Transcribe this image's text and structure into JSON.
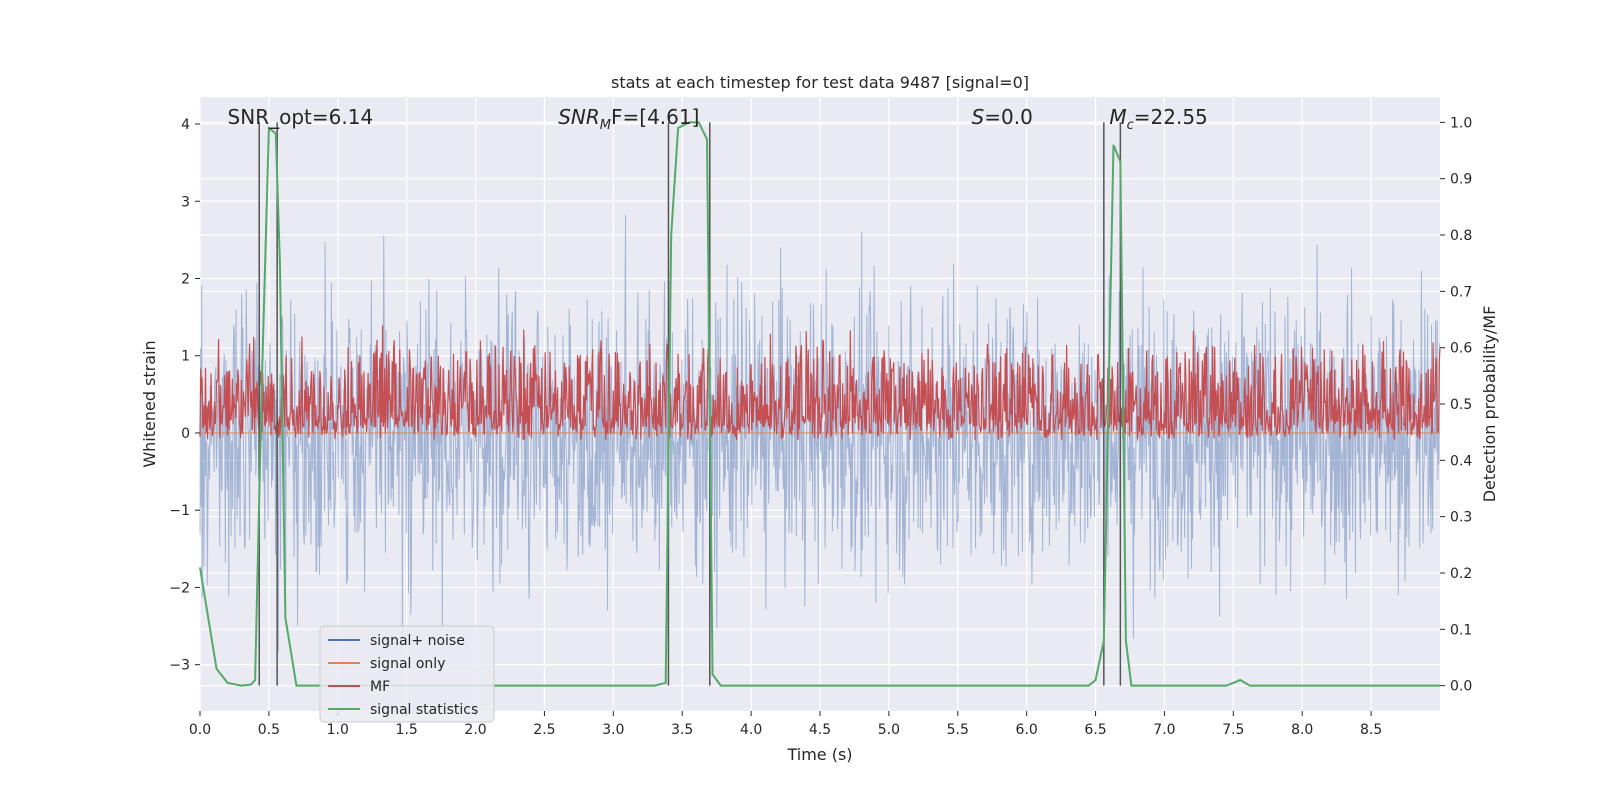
{
  "chart_data": {
    "type": "line",
    "title": "stats at each timestep for test data 9487 [signal=0]",
    "xlabel": "Time (s)",
    "ylabel_left": "Whitened strain",
    "ylabel_right": "Detection probability/MF",
    "xlim": [
      0.0,
      9.0
    ],
    "ylim_left": [
      -3.6,
      4.35
    ],
    "ylim_right": [
      -0.045,
      1.045
    ],
    "x_ticks": [
      0.0,
      0.5,
      1.0,
      1.5,
      2.0,
      2.5,
      3.0,
      3.5,
      4.0,
      4.5,
      5.0,
      5.5,
      6.0,
      6.5,
      7.0,
      7.5,
      8.0,
      8.5
    ],
    "x_tick_labels": [
      "0.0",
      "0.5",
      "1.0",
      "1.5",
      "2.0",
      "2.5",
      "3.0",
      "3.5",
      "4.0",
      "4.5",
      "5.0",
      "5.5",
      "6.0",
      "6.5",
      "7.0",
      "7.5",
      "8.0",
      "8.5"
    ],
    "y_left_ticks": [
      -3,
      -2,
      -1,
      0,
      1,
      2,
      3,
      4
    ],
    "y_left_tick_labels": [
      "−3",
      "−2",
      "−1",
      "0",
      "1",
      "2",
      "3",
      "4"
    ],
    "y_right_ticks": [
      0.0,
      0.1,
      0.2,
      0.3,
      0.4,
      0.5,
      0.6,
      0.7,
      0.8,
      0.9,
      1.0
    ],
    "y_right_tick_labels": [
      "0.0",
      "0.1",
      "0.2",
      "0.3",
      "0.4",
      "0.5",
      "0.6",
      "0.7",
      "0.8",
      "0.9",
      "1.0"
    ],
    "grid": true,
    "legend_position": "bottom-left",
    "series": [
      {
        "name": "signal+ noise",
        "axis": "left",
        "color": "#4c72b0",
        "style": "dense-noise",
        "approx_range": [
          -3.3,
          3.8
        ]
      },
      {
        "name": "signal only",
        "axis": "left",
        "color": "#dd8452",
        "values_constant": 0.0
      },
      {
        "name": "MF",
        "axis": "right",
        "color": "#c44e52",
        "style": "dense-noise",
        "approx_range": [
          0.45,
          0.6
        ]
      },
      {
        "name": "signal statistics",
        "axis": "right",
        "color": "#55a868",
        "x": [
          0.0,
          0.06,
          0.12,
          0.2,
          0.3,
          0.37,
          0.4,
          0.45,
          0.5,
          0.55,
          0.58,
          0.62,
          0.7,
          0.8,
          3.3,
          3.38,
          3.42,
          3.47,
          3.55,
          3.62,
          3.68,
          3.72,
          3.78,
          3.85,
          6.45,
          6.5,
          6.56,
          6.63,
          6.68,
          6.72,
          6.76,
          6.85,
          7.45,
          7.55,
          7.62,
          7.7,
          9.0
        ],
        "y": [
          0.21,
          0.12,
          0.03,
          0.005,
          0.0,
          0.002,
          0.01,
          0.55,
          0.99,
          0.98,
          0.75,
          0.12,
          0.0,
          0.0,
          0.0,
          0.005,
          0.8,
          0.99,
          1.0,
          1.0,
          0.97,
          0.02,
          0.0,
          0.0,
          0.0,
          0.01,
          0.08,
          0.96,
          0.93,
          0.08,
          0.0,
          0.0,
          0.0,
          0.01,
          0.0,
          0.0,
          0.0
        ]
      }
    ],
    "vertical_markers": [
      0.43,
      0.56,
      3.4,
      3.7,
      6.56,
      6.68
    ],
    "annotations": [
      {
        "text": "SNR_opt=6.14",
        "x": 0.2
      },
      {
        "text": "SNR_MF=[4.61]",
        "x": 2.6,
        "main": "SNR",
        "sub": "M",
        "tail": "F=[4.61]"
      },
      {
        "text": "S=0.0",
        "x": 5.6,
        "main": "S",
        "tail": "=0.0"
      },
      {
        "text": "M_c=22.55",
        "x": 6.6,
        "main": "M",
        "sub": "c",
        "tail": "=22.55"
      }
    ],
    "legend": [
      "signal+ noise",
      "signal only",
      "MF",
      "signal statistics"
    ],
    "colors": {
      "plot_bg": "#eaeaf2",
      "grid": "#ffffff",
      "vline": "#555555"
    }
  }
}
